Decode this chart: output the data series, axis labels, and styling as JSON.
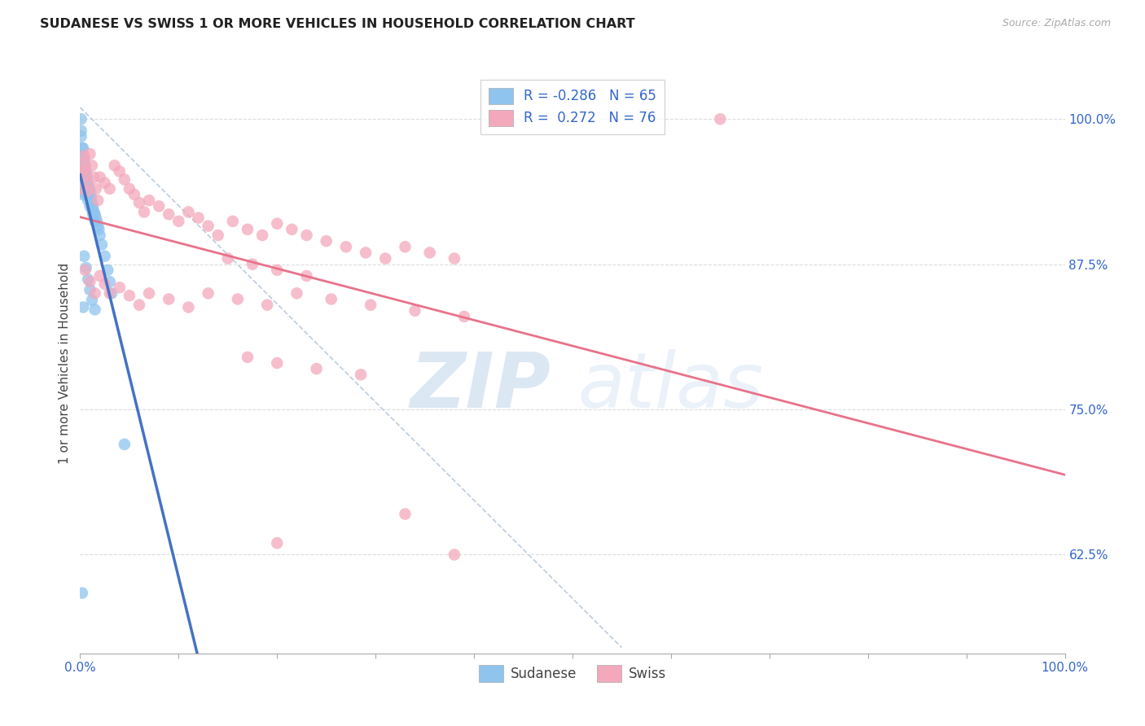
{
  "title": "SUDANESE VS SWISS 1 OR MORE VEHICLES IN HOUSEHOLD CORRELATION CHART",
  "source": "Source: ZipAtlas.com",
  "ylabel": "1 or more Vehicles in Household",
  "ytick_labels": [
    "62.5%",
    "75.0%",
    "87.5%",
    "100.0%"
  ],
  "ytick_values": [
    0.625,
    0.75,
    0.875,
    1.0
  ],
  "xlim": [
    0.0,
    1.0
  ],
  "ylim": [
    0.54,
    1.04
  ],
  "r_sudanese": -0.286,
  "n_sudanese": 65,
  "r_swiss": 0.272,
  "n_swiss": 76,
  "color_sudanese": "#8EC4EE",
  "color_swiss": "#F4A8BC",
  "color_trend_sudanese": "#4472C4",
  "color_trend_swiss": "#E8728A",
  "grid_color": "#DDDDDD",
  "ref_line_color": "#BBCCDD",
  "sudanese_x": [
    0.001,
    0.001,
    0.002,
    0.002,
    0.002,
    0.002,
    0.002,
    0.002,
    0.003,
    0.003,
    0.003,
    0.003,
    0.003,
    0.003,
    0.004,
    0.004,
    0.004,
    0.004,
    0.005,
    0.005,
    0.005,
    0.005,
    0.006,
    0.006,
    0.006,
    0.007,
    0.007,
    0.007,
    0.008,
    0.008,
    0.008,
    0.009,
    0.009,
    0.01,
    0.01,
    0.01,
    0.011,
    0.011,
    0.012,
    0.012,
    0.013,
    0.013,
    0.014,
    0.015,
    0.015,
    0.016,
    0.017,
    0.018,
    0.019,
    0.02,
    0.022,
    0.025,
    0.028,
    0.03,
    0.032,
    0.004,
    0.006,
    0.008,
    0.01,
    0.012,
    0.015,
    0.045,
    0.002,
    0.003,
    0.001
  ],
  "sudanese_y": [
    0.99,
    0.985,
    0.975,
    0.968,
    0.962,
    0.955,
    0.948,
    0.942,
    0.975,
    0.965,
    0.958,
    0.95,
    0.942,
    0.935,
    0.965,
    0.958,
    0.95,
    0.942,
    0.96,
    0.952,
    0.944,
    0.936,
    0.955,
    0.948,
    0.94,
    0.95,
    0.943,
    0.936,
    0.945,
    0.938,
    0.93,
    0.94,
    0.933,
    0.938,
    0.932,
    0.925,
    0.933,
    0.927,
    0.928,
    0.922,
    0.924,
    0.918,
    0.92,
    0.918,
    0.912,
    0.915,
    0.912,
    0.908,
    0.905,
    0.9,
    0.892,
    0.882,
    0.87,
    0.86,
    0.85,
    0.882,
    0.872,
    0.862,
    0.853,
    0.844,
    0.836,
    0.72,
    0.592,
    0.838,
    1.0
  ],
  "swiss_x": [
    0.001,
    0.002,
    0.003,
    0.004,
    0.005,
    0.006,
    0.007,
    0.008,
    0.01,
    0.012,
    0.014,
    0.016,
    0.018,
    0.02,
    0.025,
    0.03,
    0.035,
    0.04,
    0.045,
    0.05,
    0.055,
    0.06,
    0.065,
    0.07,
    0.08,
    0.09,
    0.1,
    0.11,
    0.12,
    0.13,
    0.14,
    0.155,
    0.17,
    0.185,
    0.2,
    0.215,
    0.23,
    0.25,
    0.27,
    0.29,
    0.31,
    0.33,
    0.355,
    0.38,
    0.005,
    0.01,
    0.015,
    0.02,
    0.025,
    0.03,
    0.04,
    0.05,
    0.06,
    0.07,
    0.09,
    0.11,
    0.13,
    0.16,
    0.19,
    0.22,
    0.255,
    0.295,
    0.34,
    0.39,
    0.15,
    0.175,
    0.2,
    0.23,
    0.17,
    0.2,
    0.24,
    0.285,
    0.33,
    0.38,
    0.2,
    0.65
  ],
  "swiss_y": [
    0.94,
    0.955,
    0.962,
    0.968,
    0.958,
    0.952,
    0.945,
    0.938,
    0.97,
    0.96,
    0.95,
    0.94,
    0.93,
    0.95,
    0.945,
    0.94,
    0.96,
    0.955,
    0.948,
    0.94,
    0.935,
    0.928,
    0.92,
    0.93,
    0.925,
    0.918,
    0.912,
    0.92,
    0.915,
    0.908,
    0.9,
    0.912,
    0.905,
    0.9,
    0.91,
    0.905,
    0.9,
    0.895,
    0.89,
    0.885,
    0.88,
    0.89,
    0.885,
    0.88,
    0.87,
    0.86,
    0.85,
    0.865,
    0.858,
    0.85,
    0.855,
    0.848,
    0.84,
    0.85,
    0.845,
    0.838,
    0.85,
    0.845,
    0.84,
    0.85,
    0.845,
    0.84,
    0.835,
    0.83,
    0.88,
    0.875,
    0.87,
    0.865,
    0.795,
    0.79,
    0.785,
    0.78,
    0.66,
    0.625,
    0.635,
    1.0
  ]
}
